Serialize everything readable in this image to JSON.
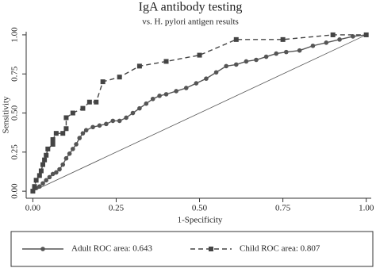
{
  "chart_data": {
    "type": "line",
    "title": "IgA antibody testing",
    "subtitle": "vs. H. pylori antigen results",
    "x_label": "1-Specificity",
    "y_label": "Sensitivity",
    "xlim": [
      -0.02,
      1.015
    ],
    "ylim": [
      -0.045,
      1.02
    ],
    "xticks": [
      {
        "value": 0,
        "label": "0.00"
      },
      {
        "value": 0.25,
        "label": "0.25"
      },
      {
        "value": 0.5,
        "label": "0.50"
      },
      {
        "value": 0.75,
        "label": "0.75"
      },
      {
        "value": 1,
        "label": "1.00"
      }
    ],
    "yticks": [
      {
        "value": 0,
        "label": "0.00"
      },
      {
        "value": 0.25,
        "label": "0.25"
      },
      {
        "value": 0.5,
        "label": "0.50"
      },
      {
        "value": 0.75,
        "label": "0.75"
      },
      {
        "value": 1,
        "label": "1.00"
      }
    ],
    "grid": false,
    "legend": "bottom",
    "series": [
      {
        "name": "Adult ROC area: 0.643",
        "color": "#555555",
        "dash": false,
        "marker": "circle",
        "x": [
          0,
          0.01,
          0.02,
          0.03,
          0.04,
          0.05,
          0.06,
          0.07,
          0.08,
          0.09,
          0.1,
          0.11,
          0.12,
          0.13,
          0.14,
          0.15,
          0.16,
          0.18,
          0.2,
          0.22,
          0.24,
          0.26,
          0.28,
          0.3,
          0.32,
          0.34,
          0.36,
          0.38,
          0.4,
          0.43,
          0.46,
          0.49,
          0.52,
          0.55,
          0.58,
          0.61,
          0.64,
          0.67,
          0.7,
          0.73,
          0.76,
          0.8,
          0.84,
          0.88,
          0.92,
          0.96,
          1
        ],
        "values": [
          0,
          0.02,
          0.03,
          0.05,
          0.07,
          0.09,
          0.11,
          0.12,
          0.14,
          0.17,
          0.21,
          0.24,
          0.27,
          0.3,
          0.34,
          0.37,
          0.39,
          0.41,
          0.42,
          0.43,
          0.45,
          0.45,
          0.47,
          0.5,
          0.53,
          0.56,
          0.59,
          0.61,
          0.62,
          0.64,
          0.66,
          0.69,
          0.72,
          0.76,
          0.8,
          0.81,
          0.83,
          0.84,
          0.86,
          0.88,
          0.89,
          0.9,
          0.93,
          0.95,
          0.97,
          0.99,
          1
        ]
      },
      {
        "name": "Child ROC area: 0.807",
        "color": "#444444",
        "dash": true,
        "marker": "square",
        "x": [
          0,
          0.005,
          0.01,
          0.02,
          0.025,
          0.03,
          0.035,
          0.04,
          0.045,
          0.06,
          0.06,
          0.07,
          0.09,
          0.1,
          0.1,
          0.12,
          0.15,
          0.17,
          0.19,
          0.21,
          0.26,
          0.32,
          0.4,
          0.5,
          0.61,
          0.75,
          0.9,
          1
        ],
        "values": [
          0,
          0.03,
          0.07,
          0.1,
          0.13,
          0.17,
          0.2,
          0.23,
          0.27,
          0.3,
          0.33,
          0.37,
          0.37,
          0.4,
          0.47,
          0.5,
          0.53,
          0.57,
          0.57,
          0.7,
          0.73,
          0.8,
          0.83,
          0.87,
          0.97,
          0.97,
          1,
          1
        ]
      }
    ]
  }
}
